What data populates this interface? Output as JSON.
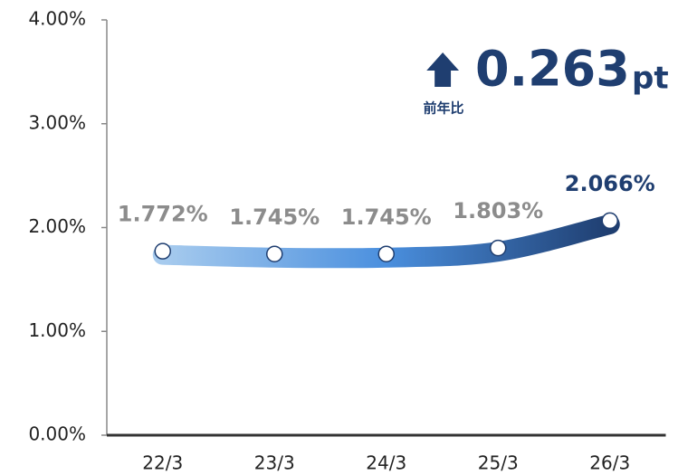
{
  "chart_data": {
    "type": "line",
    "categories": [
      "22/3",
      "23/3",
      "24/3",
      "25/3",
      "26/3"
    ],
    "values": [
      1.772,
      1.745,
      1.745,
      1.803,
      2.066
    ],
    "value_labels": [
      "1.772%",
      "1.745%",
      "1.745%",
      "1.803%",
      "2.066%"
    ],
    "value_label_colors": [
      "#8c8c8c",
      "#8c8c8c",
      "#8c8c8c",
      "#8c8c8c",
      "#1f3e70"
    ],
    "line_gradient": [
      "#a7cbee",
      "#4a8fde",
      "#1f3e70"
    ],
    "ylim": [
      0,
      4
    ],
    "yticks": [
      {
        "value": 0,
        "label": "0.00%"
      },
      {
        "value": 1,
        "label": "1.00%"
      },
      {
        "value": 2,
        "label": "2.00%"
      },
      {
        "value": 3,
        "label": "3.00%"
      },
      {
        "value": 4,
        "label": "4.00%"
      }
    ],
    "annotation": {
      "value": "0.263",
      "unit": "pt",
      "caption": "前年比",
      "color": "#1f3e70"
    }
  }
}
